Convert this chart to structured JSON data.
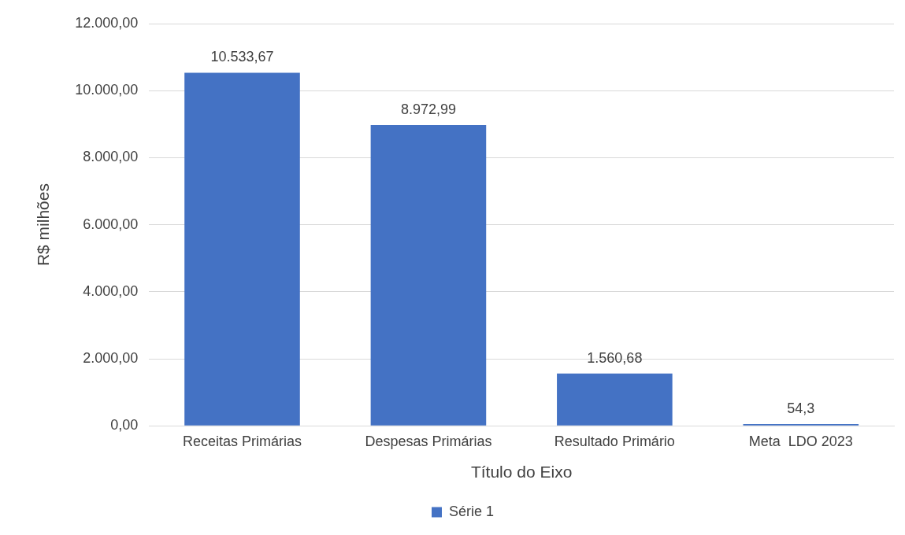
{
  "chart_data": {
    "type": "bar",
    "xlabel": "Título do Eixo",
    "ylabel": "R$ milhões",
    "categories": [
      "Receitas Primárias",
      "Despesas Primárias",
      "Resultado Primário",
      "Meta  LDO 2023"
    ],
    "series": [
      {
        "name": "Série 1",
        "color": "#4472c4",
        "values": [
          10533.67,
          8972.99,
          1560.68,
          54.3
        ],
        "value_labels": [
          "10.533,67",
          "8.972,99",
          "1.560,68",
          "54,3"
        ]
      }
    ],
    "ylim": [
      0,
      12000
    ],
    "yticks": [
      {
        "value": 0,
        "label": "0,00"
      },
      {
        "value": 2000,
        "label": "2.000,00"
      },
      {
        "value": 4000,
        "label": "4.000,00"
      },
      {
        "value": 6000,
        "label": "6.000,00"
      },
      {
        "value": 8000,
        "label": "8.000,00"
      },
      {
        "value": 10000,
        "label": "10.000,00"
      },
      {
        "value": 12000,
        "label": "12.000,00"
      }
    ],
    "grid": "y",
    "legend": "bottom"
  }
}
